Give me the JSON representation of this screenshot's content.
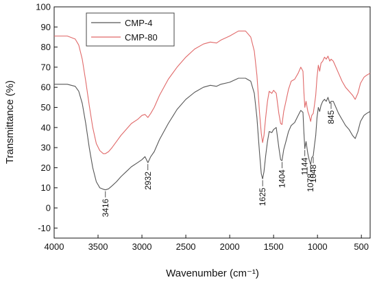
{
  "chart_data": {
    "type": "line",
    "xlabel": "Wavenumber (cm⁻¹)",
    "ylabel": "Transmittance (%)",
    "xlim": [
      4000,
      400
    ],
    "ylim": [
      -15,
      100
    ],
    "x_reversed": true,
    "x_ticks": [
      4000,
      3500,
      3000,
      2500,
      2000,
      1500,
      1000,
      500
    ],
    "y_ticks": [
      -10,
      0,
      10,
      20,
      30,
      40,
      50,
      60,
      70,
      80,
      90,
      100
    ],
    "grid": false,
    "legend_position": "top-left",
    "series": [
      {
        "name": "CMP-4",
        "color": "#555555",
        "points": [
          [
            4000,
            61.5
          ],
          [
            3850,
            61.5
          ],
          [
            3760,
            60.5
          ],
          [
            3720,
            58
          ],
          [
            3680,
            52
          ],
          [
            3640,
            42
          ],
          [
            3600,
            30
          ],
          [
            3560,
            20
          ],
          [
            3520,
            13
          ],
          [
            3480,
            10
          ],
          [
            3440,
            9.3
          ],
          [
            3416,
            9
          ],
          [
            3380,
            9.5
          ],
          [
            3340,
            11
          ],
          [
            3290,
            13
          ],
          [
            3240,
            15.5
          ],
          [
            3180,
            18
          ],
          [
            3120,
            20.5
          ],
          [
            3050,
            22.5
          ],
          [
            3000,
            24
          ],
          [
            2965,
            25.5
          ],
          [
            2932,
            22.5
          ],
          [
            2900,
            25.5
          ],
          [
            2860,
            28
          ],
          [
            2800,
            34
          ],
          [
            2700,
            42
          ],
          [
            2600,
            49
          ],
          [
            2500,
            54
          ],
          [
            2400,
            57.5
          ],
          [
            2300,
            60
          ],
          [
            2220,
            61
          ],
          [
            2150,
            60.5
          ],
          [
            2100,
            61.5
          ],
          [
            2000,
            62.5
          ],
          [
            1900,
            64.5
          ],
          [
            1820,
            64.5
          ],
          [
            1760,
            63
          ],
          [
            1720,
            57
          ],
          [
            1690,
            45
          ],
          [
            1660,
            27
          ],
          [
            1640,
            17
          ],
          [
            1625,
            14.5
          ],
          [
            1610,
            18
          ],
          [
            1590,
            26
          ],
          [
            1570,
            33
          ],
          [
            1550,
            38
          ],
          [
            1520,
            37.5
          ],
          [
            1500,
            39
          ],
          [
            1470,
            40
          ],
          [
            1440,
            30
          ],
          [
            1420,
            24
          ],
          [
            1404,
            23.5
          ],
          [
            1385,
            29
          ],
          [
            1360,
            33
          ],
          [
            1330,
            38
          ],
          [
            1300,
            41
          ],
          [
            1260,
            42.5
          ],
          [
            1220,
            46
          ],
          [
            1190,
            48.5
          ],
          [
            1165,
            47.5
          ],
          [
            1155,
            38
          ],
          [
            1144,
            29.5
          ],
          [
            1130,
            33
          ],
          [
            1110,
            27
          ],
          [
            1095,
            24
          ],
          [
            1078,
            21.5
          ],
          [
            1065,
            25
          ],
          [
            1048,
            26
          ],
          [
            1035,
            31
          ],
          [
            1020,
            36
          ],
          [
            1005,
            45
          ],
          [
            990,
            50
          ],
          [
            975,
            48
          ],
          [
            960,
            51
          ],
          [
            940,
            53
          ],
          [
            920,
            54
          ],
          [
            900,
            53
          ],
          [
            880,
            55
          ],
          [
            860,
            52
          ],
          [
            845,
            53
          ],
          [
            820,
            53
          ],
          [
            800,
            51
          ],
          [
            760,
            47
          ],
          [
            720,
            44
          ],
          [
            680,
            41
          ],
          [
            640,
            39
          ],
          [
            600,
            36
          ],
          [
            570,
            34.5
          ],
          [
            540,
            38
          ],
          [
            510,
            43
          ],
          [
            470,
            46
          ],
          [
            440,
            47
          ],
          [
            400,
            48
          ]
        ]
      },
      {
        "name": "CMP-80",
        "color": "#e06868",
        "points": [
          [
            4000,
            85.5
          ],
          [
            3850,
            85.5
          ],
          [
            3760,
            84
          ],
          [
            3720,
            81
          ],
          [
            3680,
            74
          ],
          [
            3640,
            63
          ],
          [
            3600,
            51
          ],
          [
            3560,
            40
          ],
          [
            3520,
            32
          ],
          [
            3480,
            28.5
          ],
          [
            3440,
            27
          ],
          [
            3416,
            27
          ],
          [
            3380,
            28
          ],
          [
            3340,
            30
          ],
          [
            3290,
            33
          ],
          [
            3240,
            36
          ],
          [
            3180,
            39
          ],
          [
            3120,
            42
          ],
          [
            3050,
            44
          ],
          [
            3000,
            46
          ],
          [
            2965,
            46.5
          ],
          [
            2932,
            45
          ],
          [
            2900,
            47
          ],
          [
            2860,
            50
          ],
          [
            2800,
            56
          ],
          [
            2700,
            64
          ],
          [
            2600,
            70
          ],
          [
            2500,
            75
          ],
          [
            2400,
            79
          ],
          [
            2300,
            81.5
          ],
          [
            2220,
            82.5
          ],
          [
            2150,
            82
          ],
          [
            2100,
            83.5
          ],
          [
            2000,
            85.5
          ],
          [
            1900,
            88
          ],
          [
            1820,
            88
          ],
          [
            1760,
            85
          ],
          [
            1720,
            78
          ],
          [
            1690,
            66
          ],
          [
            1660,
            47
          ],
          [
            1640,
            37
          ],
          [
            1625,
            32.5
          ],
          [
            1610,
            36
          ],
          [
            1590,
            45
          ],
          [
            1570,
            53
          ],
          [
            1550,
            58
          ],
          [
            1520,
            57
          ],
          [
            1500,
            58.5
          ],
          [
            1470,
            57
          ],
          [
            1440,
            47
          ],
          [
            1420,
            42
          ],
          [
            1404,
            41.5
          ],
          [
            1385,
            48
          ],
          [
            1360,
            53
          ],
          [
            1330,
            59
          ],
          [
            1300,
            63
          ],
          [
            1260,
            64
          ],
          [
            1220,
            67
          ],
          [
            1190,
            70
          ],
          [
            1165,
            68
          ],
          [
            1155,
            58
          ],
          [
            1144,
            50
          ],
          [
            1130,
            53
          ],
          [
            1110,
            48
          ],
          [
            1095,
            46
          ],
          [
            1078,
            43
          ],
          [
            1065,
            46
          ],
          [
            1048,
            47
          ],
          [
            1035,
            51
          ],
          [
            1020,
            56
          ],
          [
            1005,
            65
          ],
          [
            990,
            71
          ],
          [
            975,
            68
          ],
          [
            960,
            72
          ],
          [
            940,
            73
          ],
          [
            920,
            75
          ],
          [
            900,
            74
          ],
          [
            880,
            75.5
          ],
          [
            860,
            73
          ],
          [
            845,
            74
          ],
          [
            820,
            73
          ],
          [
            800,
            71
          ],
          [
            760,
            67
          ],
          [
            720,
            63
          ],
          [
            680,
            60
          ],
          [
            640,
            58
          ],
          [
            600,
            56
          ],
          [
            570,
            54
          ],
          [
            540,
            57
          ],
          [
            510,
            62
          ],
          [
            470,
            65
          ],
          [
            440,
            66
          ],
          [
            400,
            67
          ]
        ]
      }
    ],
    "annotations": [
      {
        "label": "3416",
        "x": 3416,
        "y": 9
      },
      {
        "label": "2932",
        "x": 2932,
        "y": 22.5
      },
      {
        "label": "1625",
        "x": 1625,
        "y": 14.5
      },
      {
        "label": "1404",
        "x": 1404,
        "y": 23.5
      },
      {
        "label": "1144",
        "x": 1144,
        "y": 29.5
      },
      {
        "label": "1078",
        "x": 1078,
        "y": 21.5
      },
      {
        "label": "1048",
        "x": 1048,
        "y": 26
      },
      {
        "label": "845",
        "x": 845,
        "y": 53
      }
    ]
  }
}
